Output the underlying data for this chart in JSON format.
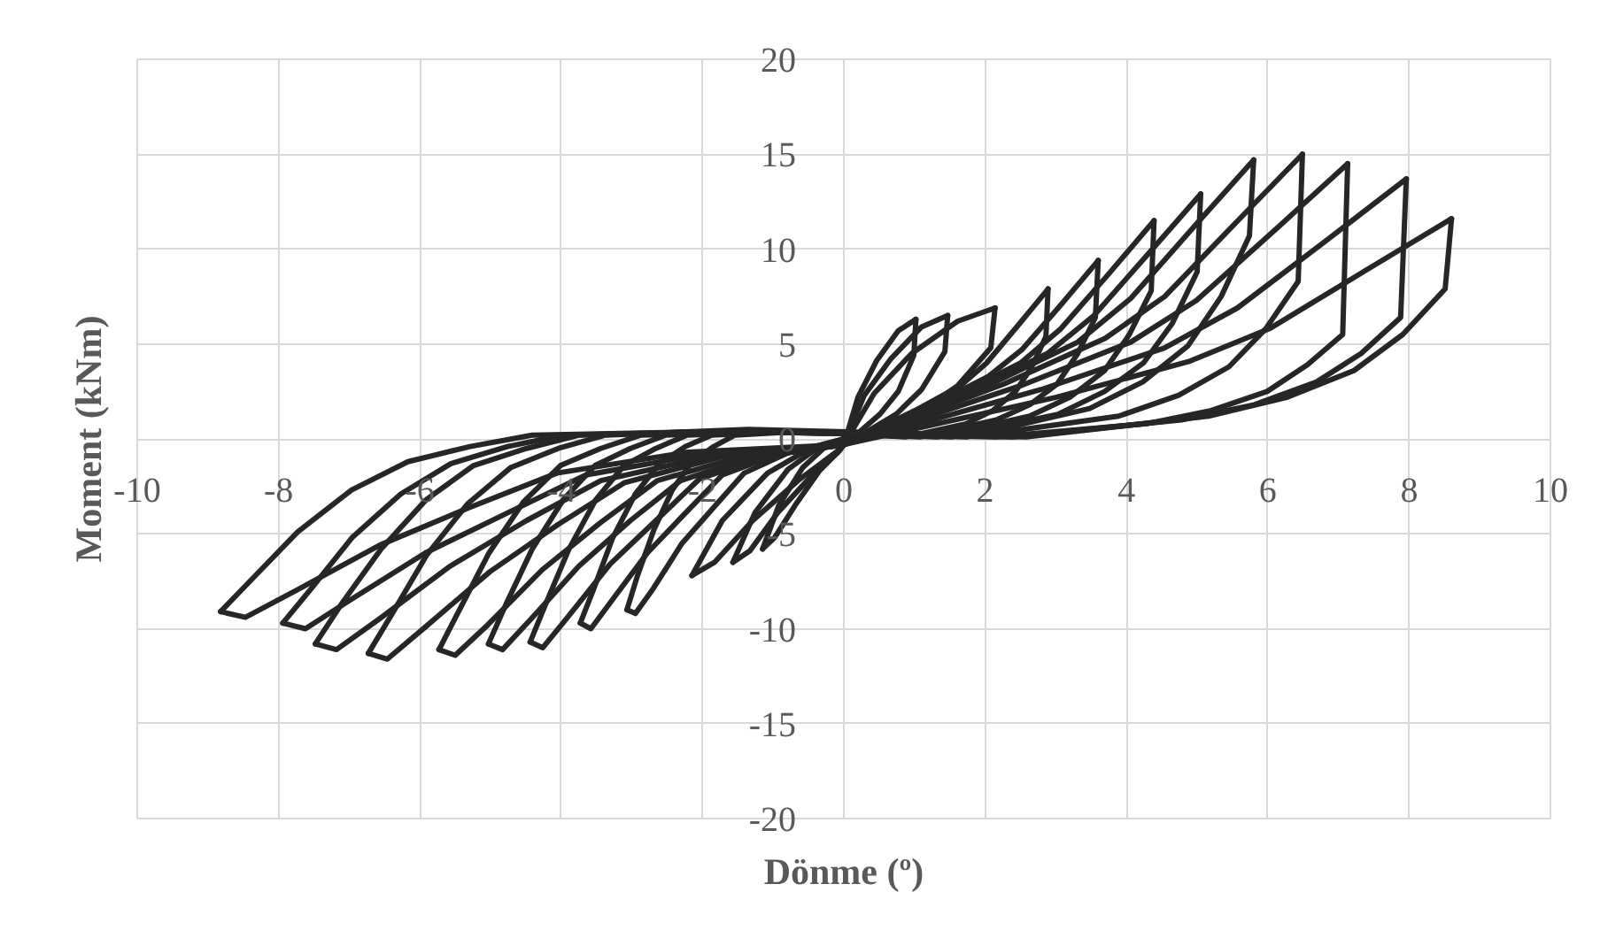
{
  "chart_data": {
    "type": "line",
    "xlabel": "Dönme (º)",
    "ylabel": "Moment (kNm)",
    "xlim": [
      -10,
      10
    ],
    "ylim": [
      -20,
      20
    ],
    "xticks": [
      -10,
      -8,
      -6,
      -4,
      -2,
      0,
      2,
      4,
      6,
      8,
      10
    ],
    "yticks": [
      -20,
      -15,
      -10,
      -5,
      0,
      5,
      10,
      15,
      20
    ],
    "grid": true,
    "line_style": "solid",
    "series": [
      {
        "color": "#262626",
        "x": [
          0,
          0.2,
          0.46,
          0.77,
          1.02
        ],
        "values": [
          -0.3,
          2.2,
          4.1,
          5.7,
          6.3
        ]
      },
      {
        "color": "#262626",
        "x": [
          1.02,
          0.99,
          0.77,
          0.51,
          0.2,
          -0.23,
          -0.58,
          -0.92,
          -1.15
        ],
        "values": [
          6.3,
          4.4,
          2.5,
          1.3,
          0.3,
          -0.3,
          -1.5,
          -3.5,
          -5.8
        ]
      },
      {
        "color": "#262626",
        "x": [
          -1.15,
          -0.98,
          -0.69,
          -0.35,
          -0.06,
          0,
          0.29,
          0.66,
          1.1,
          1.47
        ],
        "values": [
          -5.8,
          -5.2,
          -3.5,
          -1.7,
          -0.6,
          -0.3,
          2.3,
          4.2,
          5.9,
          6.5
        ]
      },
      {
        "color": "#262626",
        "x": [
          1.47,
          1.43,
          1.1,
          0.74,
          0.29,
          -0.31,
          -0.79,
          -1.26,
          -1.57
        ],
        "values": [
          6.5,
          4.6,
          2.6,
          1.3,
          0.3,
          -0.3,
          -1.6,
          -3.9,
          -6.5
        ]
      },
      {
        "color": "#262626",
        "x": [
          -1.57,
          -1.33,
          -0.94,
          -0.47,
          -0.08,
          0,
          0.43,
          0.96,
          1.61,
          2.14
        ],
        "values": [
          -6.5,
          -5.9,
          -3.9,
          -2.0,
          -0.7,
          -0.3,
          2.4,
          4.5,
          6.2,
          6.9
        ]
      },
      {
        "color": "#262626",
        "x": [
          2.14,
          2.08,
          1.61,
          1.07,
          0.43,
          -0.43,
          -1.08,
          -1.72,
          -2.15
        ],
        "values": [
          6.9,
          4.8,
          2.8,
          1.4,
          0.3,
          -0.4,
          -1.8,
          -4.3,
          -7.2
        ]
      },
      {
        "color": "#262626",
        "x": [
          -2.15,
          -1.83,
          -1.29,
          -0.65,
          -0.11,
          0,
          1.01,
          1.65,
          2.02,
          2.47,
          2.89
        ],
        "values": [
          -7.2,
          -6.5,
          -4.3,
          -2.2,
          -0.7,
          -0.3,
          1.5,
          2.8,
          4.0,
          6.0,
          7.9
        ]
      },
      {
        "color": "#262626",
        "x": [
          2.89,
          2.86,
          2.66,
          2.43,
          2.11,
          1.73,
          0.87,
          -0.61,
          -1.54,
          -1.84,
          -2.15,
          -2.43,
          -2.69,
          -2.92,
          -3.07
        ],
        "values": [
          7.9,
          5.4,
          3.8,
          2.5,
          1.5,
          0.8,
          0.1,
          0.4,
          0.2,
          -0.4,
          -1.2,
          -2.7,
          -4.8,
          -7.2,
          -9.0
        ]
      },
      {
        "color": "#262626",
        "x": [
          -3.07,
          -2.95,
          -2.7,
          -2.29,
          -1.84,
          -1.41,
          -0.77,
          0,
          1.26,
          2.05,
          2.52,
          3.08,
          3.6
        ],
        "values": [
          -9.0,
          -9.2,
          -7.9,
          -5.5,
          -3.6,
          -1.8,
          -0.7,
          -0.3,
          1.8,
          3.3,
          4.7,
          7.1,
          9.4
        ]
      },
      {
        "color": "#262626",
        "x": [
          3.6,
          3.56,
          3.31,
          3.02,
          2.63,
          2.16,
          1.08,
          -0.75,
          -1.87,
          -2.24,
          -2.61,
          -2.95,
          -3.27,
          -3.54,
          -3.73
        ],
        "values": [
          9.4,
          6.4,
          4.5,
          2.9,
          1.8,
          1.0,
          0.1,
          0.4,
          0.2,
          -0.4,
          -1.3,
          -2.9,
          -5.2,
          -7.9,
          -9.7
        ]
      },
      {
        "color": "#262626",
        "x": [
          -3.73,
          -3.58,
          -3.28,
          -2.78,
          -2.24,
          -1.72,
          -0.93,
          0,
          1.54,
          2.5,
          3.07,
          3.75,
          4.39
        ],
        "values": [
          -9.7,
          -10.0,
          -8.5,
          -6.0,
          -3.9,
          -1.9,
          -0.8,
          -0.3,
          2.2,
          4.0,
          5.8,
          8.7,
          11.5
        ]
      },
      {
        "color": "#262626",
        "x": [
          4.39,
          4.35,
          4.04,
          3.69,
          3.2,
          2.63,
          1.32,
          -0.89,
          -2.22,
          -2.66,
          -3.11,
          -3.51,
          -3.89,
          -4.22,
          -4.44
        ],
        "values": [
          11.5,
          7.8,
          5.5,
          3.6,
          2.2,
          1.2,
          0.1,
          0.4,
          0.2,
          -0.5,
          -1.4,
          -3.2,
          -5.8,
          -8.7,
          -10.7
        ]
      },
      {
        "color": "#262626",
        "x": [
          -4.44,
          -4.26,
          -3.91,
          -3.31,
          -2.66,
          -2.04,
          -1.11,
          0,
          1.77,
          2.88,
          3.54,
          4.32,
          5.05
        ],
        "values": [
          -10.7,
          -11.0,
          -9.4,
          -6.6,
          -4.3,
          -2.1,
          -0.9,
          -0.3,
          2.5,
          4.5,
          6.5,
          9.8,
          12.9
        ]
      },
      {
        "color": "#262626",
        "x": [
          5.05,
          5.0,
          4.65,
          4.24,
          3.69,
          3.03,
          1.52,
          -1.01,
          -2.52,
          -3.02,
          -3.52,
          -3.97,
          -4.41,
          -4.78,
          -5.03
        ],
        "values": [
          12.9,
          8.8,
          6.1,
          4.0,
          2.5,
          1.3,
          0.1,
          0.4,
          0.2,
          -0.5,
          -1.4,
          -3.2,
          -5.8,
          -8.7,
          -10.8
        ]
      },
      {
        "color": "#262626",
        "x": [
          -5.03,
          -4.83,
          -4.43,
          -3.75,
          -3.02,
          -2.31,
          -1.26,
          0,
          2.03,
          3.31,
          4.06,
          4.96,
          5.8
        ],
        "values": [
          -10.8,
          -11.1,
          -9.5,
          -6.7,
          -4.3,
          -2.2,
          -0.9,
          -0.3,
          2.8,
          5.1,
          7.4,
          11.2,
          14.7
        ]
      },
      {
        "color": "#262626",
        "x": [
          5.8,
          5.74,
          5.34,
          4.87,
          4.23,
          3.48,
          1.74,
          -1.15,
          -2.87,
          -3.44,
          -4.01,
          -4.53,
          -5.02,
          -5.44,
          -5.73
        ],
        "values": [
          14.7,
          10.7,
          7.5,
          4.9,
          3.0,
          1.6,
          0.1,
          0.4,
          0.2,
          -0.5,
          -1.4,
          -3.3,
          -6.0,
          -9.0,
          -11.1
        ]
      },
      {
        "color": "#262626",
        "x": [
          -5.73,
          -5.5,
          -5.04,
          -4.27,
          -3.44,
          -2.64,
          -1.43,
          0,
          2.27,
          3.7,
          4.54,
          5.55,
          6.49
        ],
        "values": [
          -11.1,
          -11.4,
          -9.8,
          -6.9,
          -4.4,
          -2.2,
          -0.9,
          -0.3,
          2.9,
          5.3,
          7.5,
          11.4,
          15.0
        ]
      },
      {
        "color": "#262626",
        "x": [
          6.49,
          6.43,
          5.97,
          5.45,
          4.74,
          3.89,
          1.95,
          -1.35,
          -3.37,
          -4.04,
          -4.71,
          -5.32,
          -5.9,
          -6.39,
          -6.73
        ],
        "values": [
          15.0,
          8.3,
          5.8,
          3.8,
          2.3,
          1.2,
          0.2,
          0.5,
          0.2,
          -0.5,
          -1.5,
          -3.4,
          -6.1,
          -9.2,
          -11.3
        ]
      },
      {
        "color": "#262626",
        "x": [
          -6.73,
          -6.46,
          -5.92,
          -5.01,
          -4.04,
          -3.1,
          -1.68,
          0,
          2.5,
          4.06,
          4.99,
          6.1,
          7.13
        ],
        "values": [
          -11.3,
          -11.6,
          -9.9,
          -7.0,
          -4.5,
          -2.3,
          -0.9,
          -0.3,
          2.8,
          5.1,
          7.3,
          11.0,
          14.5
        ]
      },
      {
        "color": "#262626",
        "x": [
          7.13,
          7.06,
          6.56,
          5.99,
          5.2,
          4.28,
          2.14,
          -1.5,
          -3.74,
          -4.49,
          -5.24,
          -5.91,
          -6.55,
          -7.11,
          -7.48
        ],
        "values": [
          14.5,
          5.5,
          3.9,
          2.5,
          1.5,
          0.8,
          0.1,
          0.4,
          0.2,
          -0.5,
          -1.4,
          -3.2,
          -5.8,
          -8.7,
          -10.8
        ]
      },
      {
        "color": "#262626",
        "x": [
          -7.48,
          -7.18,
          -6.58,
          -5.57,
          -4.49,
          -3.44,
          -1.87,
          0,
          2.79,
          4.54,
          5.57,
          6.81,
          7.96
        ],
        "values": [
          -10.8,
          -11.1,
          -9.5,
          -6.7,
          -4.3,
          -2.2,
          -0.9,
          -0.3,
          2.6,
          4.8,
          6.9,
          10.4,
          13.7
        ]
      },
      {
        "color": "#262626",
        "x": [
          7.96,
          7.88,
          7.32,
          6.69,
          5.81,
          4.78,
          2.39,
          -1.59,
          -3.97,
          -4.76,
          -5.56,
          -6.27,
          -6.96,
          -7.54,
          -7.94
        ],
        "values": [
          13.7,
          6.4,
          4.5,
          3.0,
          1.8,
          1.0,
          0.1,
          0.4,
          0.2,
          -0.4,
          -1.3,
          -2.9,
          -5.2,
          -7.9,
          -9.7
        ]
      },
      {
        "color": "#262626",
        "x": [
          -7.94,
          -7.62,
          -6.99,
          -5.92,
          -4.76,
          -3.65,
          -1.99,
          0,
          3.01,
          4.9,
          6.02,
          7.35,
          8.6
        ],
        "values": [
          -9.7,
          -10.0,
          -8.5,
          -6.0,
          -3.9,
          -1.9,
          -0.8,
          -0.3,
          2.2,
          4.1,
          5.8,
          8.8,
          11.6
        ]
      },
      {
        "color": "#262626",
        "x": [
          8.6,
          8.51,
          7.91,
          7.22,
          6.28,
          5.16,
          2.58,
          -1.76,
          -4.41,
          -5.29,
          -6.17,
          -6.97,
          -7.73,
          -8.38,
          -8.82
        ],
        "values": [
          11.6,
          7.9,
          5.5,
          3.6,
          2.2,
          1.2,
          0.1,
          0.4,
          0.2,
          -0.4,
          -1.2,
          -2.7,
          -4.9,
          -7.4,
          -9.1
        ]
      },
      {
        "color": "#262626",
        "x": [
          -8.82,
          -8.47,
          -7.76,
          -6.57,
          -5.29,
          -4.06,
          -2.21,
          0
        ],
        "values": [
          -9.1,
          -9.4,
          -8.0,
          -5.6,
          -3.6,
          -1.8,
          -0.7,
          -0.3
        ]
      }
    ]
  }
}
